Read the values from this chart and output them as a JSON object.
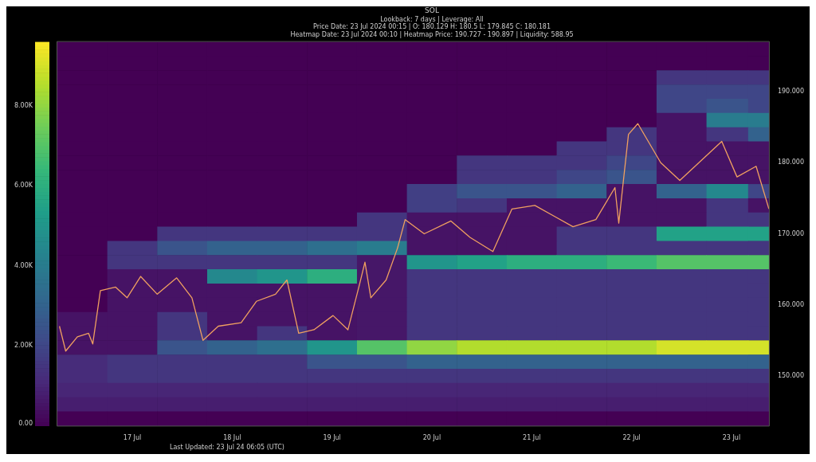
{
  "chart_data": {
    "type": "heatmap",
    "title": "SOL",
    "subtitle": "Lookback: 7 days | Leverage: All",
    "annotations": [
      "Price Date: 23 Jul 2024 00:15 | O: 180.129 H: 180.5 L: 179.845 C: 180.181",
      "Heatmap Date: 23 Jul 2024 00:10 | Heatmap Price: 190.727 - 190.897 | Liquidity: 588.95",
      "Last Updated: 23 Jul 24 06:05 (UTC)"
    ],
    "x": [
      "2024-07-16T12:00",
      "2024-07-17T00:00",
      "2024-07-17T12:00",
      "2024-07-18T00:00",
      "2024-07-18T12:00",
      "2024-07-19T00:00",
      "2024-07-19T12:00",
      "2024-07-20T00:00",
      "2024-07-20T12:00",
      "2024-07-21T00:00",
      "2024-07-21T12:00",
      "2024-07-22T00:00",
      "2024-07-22T12:00",
      "2024-07-23T00:00",
      "2024-07-23T08:00"
    ],
    "y": [
      196,
      194,
      192,
      190,
      188,
      186,
      184,
      182,
      180,
      178,
      176,
      174,
      172,
      170,
      168,
      166,
      164,
      162,
      160,
      158,
      156,
      154,
      152,
      150,
      148,
      146,
      144
    ],
    "cells": [
      [
        0,
        0,
        0,
        0,
        0,
        0,
        0,
        0,
        0,
        0,
        0,
        0,
        0,
        0,
        0
      ],
      [
        0,
        0,
        0,
        0,
        0,
        0,
        0,
        0,
        0,
        0,
        0,
        0,
        0,
        0,
        0
      ],
      [
        0,
        0,
        0,
        0,
        0,
        0,
        0,
        0,
        0,
        0,
        0,
        0,
        1500,
        1500,
        1500
      ],
      [
        0,
        0,
        0,
        0,
        0,
        0,
        0,
        0,
        0,
        0,
        0,
        0,
        2000,
        2000,
        2000
      ],
      [
        0,
        0,
        0,
        0,
        0,
        0,
        0,
        0,
        0,
        0,
        0,
        0,
        2000,
        2500,
        2000
      ],
      [
        0,
        0,
        0,
        0,
        0,
        0,
        0,
        0,
        0,
        0,
        0,
        0,
        500,
        4000,
        4000
      ],
      [
        0,
        0,
        0,
        0,
        0,
        0,
        0,
        0,
        0,
        0,
        0,
        1500,
        500,
        1500,
        3000
      ],
      [
        0,
        0,
        0,
        0,
        0,
        0,
        0,
        0,
        0,
        0,
        1500,
        1500,
        500,
        500,
        500
      ],
      [
        0,
        0,
        0,
        0,
        0,
        0,
        0,
        0,
        1500,
        1500,
        1500,
        2000,
        500,
        500,
        500
      ],
      [
        0,
        0,
        0,
        0,
        0,
        0,
        0,
        0,
        1500,
        1500,
        2000,
        2500,
        500,
        500,
        500
      ],
      [
        0,
        0,
        0,
        0,
        0,
        0,
        0,
        1800,
        2500,
        2500,
        3000,
        500,
        3000,
        4500,
        2000
      ],
      [
        0,
        0,
        0,
        0,
        0,
        0,
        0,
        1800,
        1500,
        500,
        500,
        500,
        500,
        1500,
        500
      ],
      [
        0,
        0,
        0,
        0,
        0,
        0,
        1500,
        500,
        500,
        500,
        500,
        500,
        500,
        1500,
        1500
      ],
      [
        0,
        0,
        1500,
        1500,
        1500,
        1500,
        1500,
        500,
        500,
        500,
        1500,
        1500,
        5500,
        5500,
        5500
      ],
      [
        0,
        1500,
        2500,
        3000,
        3000,
        3500,
        4000,
        500,
        500,
        500,
        1500,
        1500,
        1500,
        1500,
        1500
      ],
      [
        0,
        1500,
        1500,
        1500,
        1500,
        1500,
        600,
        5000,
        5500,
        6000,
        6000,
        6500,
        7000,
        7000,
        7000
      ],
      [
        0,
        500,
        500,
        4500,
        5000,
        6000,
        600,
        1500,
        1500,
        1500,
        1500,
        1500,
        1500,
        1500,
        1500
      ],
      [
        0,
        500,
        500,
        500,
        500,
        500,
        600,
        1500,
        1500,
        1500,
        1500,
        1500,
        1500,
        1500,
        1500
      ],
      [
        0,
        500,
        500,
        500,
        500,
        500,
        600,
        1500,
        1500,
        1500,
        1500,
        1500,
        1500,
        1500,
        1500
      ],
      [
        500,
        500,
        1500,
        500,
        500,
        500,
        600,
        1500,
        1500,
        1500,
        1500,
        1500,
        1500,
        1500,
        1500
      ],
      [
        500,
        500,
        1500,
        500,
        1500,
        500,
        600,
        1500,
        1500,
        1500,
        1500,
        1500,
        1500,
        1500,
        1500
      ],
      [
        500,
        500,
        2500,
        3000,
        3500,
        5000,
        7000,
        8000,
        8500,
        8500,
        8500,
        8500,
        9000,
        9000,
        9000
      ],
      [
        1200,
        1500,
        1500,
        1500,
        1500,
        2500,
        2500,
        3000,
        3000,
        3000,
        3000,
        3000,
        3000,
        3000,
        3000
      ],
      [
        1200,
        1500,
        1500,
        1500,
        1500,
        1500,
        1500,
        1500,
        1500,
        1500,
        1500,
        1500,
        1500,
        1500,
        1500
      ],
      [
        1000,
        1000,
        1000,
        1000,
        1000,
        1000,
        1000,
        1000,
        1000,
        1000,
        1000,
        1000,
        1000,
        1000,
        1000
      ],
      [
        800,
        800,
        800,
        800,
        800,
        800,
        800,
        800,
        800,
        800,
        800,
        800,
        800,
        800,
        800
      ],
      [
        0,
        0,
        0,
        0,
        0,
        0,
        0,
        0,
        0,
        0,
        0,
        0,
        0,
        0,
        0
      ]
    ],
    "clim": [
      0,
      9600
    ],
    "cticks": [
      {
        "value": 0,
        "label": "0.00"
      },
      {
        "value": 2000,
        "label": "2.00K"
      },
      {
        "value": 4000,
        "label": "4.00K"
      },
      {
        "value": 6000,
        "label": "6.00K"
      },
      {
        "value": 8000,
        "label": "8.00K"
      }
    ],
    "xlim": [
      "2024-07-16T06:00",
      "2024-07-23T09:00"
    ],
    "xticks": [
      {
        "value": "2024-07-17",
        "label": "17 Jul"
      },
      {
        "value": "2024-07-18",
        "label": "18 Jul"
      },
      {
        "value": "2024-07-19",
        "label": "19 Jul"
      },
      {
        "value": "2024-07-20",
        "label": "20 Jul"
      },
      {
        "value": "2024-07-21",
        "label": "21 Jul"
      },
      {
        "value": "2024-07-22",
        "label": "22 Jul"
      },
      {
        "value": "2024-07-23",
        "label": "23 Jul"
      }
    ],
    "ylim": [
      143,
      197
    ],
    "yticks": [
      {
        "value": 150,
        "label": "150.000"
      },
      {
        "value": 160,
        "label": "160.000"
      },
      {
        "value": 170,
        "label": "170.000"
      },
      {
        "value": 180,
        "label": "180.000"
      },
      {
        "value": 190,
        "label": "190.000"
      }
    ],
    "series": [
      {
        "type": "line",
        "color": "#f0a060",
        "x": [
          "2024-07-16T06:30",
          "2024-07-16T08:00",
          "2024-07-16T10:48",
          "2024-07-16T13:30",
          "2024-07-16T14:30",
          "2024-07-16T16:20",
          "2024-07-16T20:00",
          "2024-07-16T22:45",
          "2024-07-17T02:00",
          "2024-07-17T06:00",
          "2024-07-17T10:40",
          "2024-07-17T14:20",
          "2024-07-17T17:00",
          "2024-07-17T20:40",
          "2024-07-18T02:10",
          "2024-07-18T05:50",
          "2024-07-18T10:25",
          "2024-07-18T13:10",
          "2024-07-18T16:00",
          "2024-07-18T19:40",
          "2024-07-19T00:15",
          "2024-07-19T03:50",
          "2024-07-19T06:40",
          "2024-07-19T07:55",
          "2024-07-19T09:20",
          "2024-07-19T13:00",
          "2024-07-19T15:45",
          "2024-07-19T17:35",
          "2024-07-19T22:10",
          "2024-07-20T04:35",
          "2024-07-20T09:10",
          "2024-07-20T14:40",
          "2024-07-20T19:15",
          "2024-07-21T00:45",
          "2024-07-21T05:20",
          "2024-07-21T09:55",
          "2024-07-21T15:25",
          "2024-07-21T20:00",
          "2024-07-21T20:55",
          "2024-07-21T23:15",
          "2024-07-22T01:30",
          "2024-07-22T07:00",
          "2024-07-22T11:35",
          "2024-07-22T16:10",
          "2024-07-22T21:40",
          "2024-07-23T01:20",
          "2024-07-23T05:55",
          "2024-07-23T09:00"
        ],
        "values": [
          157,
          153.5,
          155.5,
          156,
          154.5,
          162,
          162.5,
          161,
          164,
          161.5,
          163.8,
          161,
          155,
          157,
          157.5,
          160.5,
          161.5,
          163.5,
          156,
          156.5,
          158.5,
          156.5,
          163,
          166,
          161,
          163.5,
          168,
          172,
          170,
          171.8,
          169.5,
          167.5,
          173.5,
          174,
          172.5,
          171,
          172,
          176.5,
          171.5,
          184,
          185.5,
          180,
          177.5,
          180,
          183,
          178,
          179.5,
          173.5
        ]
      }
    ]
  }
}
